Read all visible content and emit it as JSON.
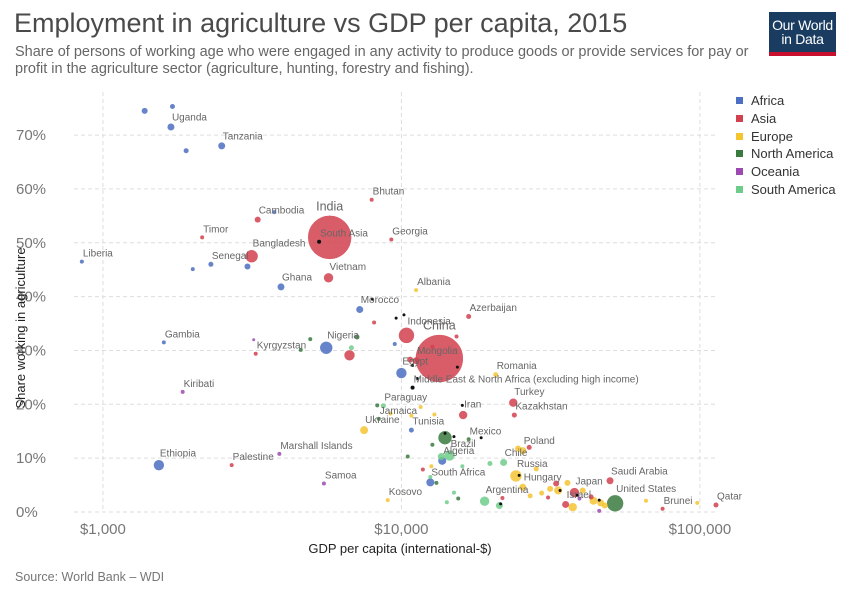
{
  "header": {
    "title": "Employment in agriculture vs GDP per capita, 2015",
    "subtitle": "Share of persons of working age who were engaged in any activity to produce goods or provide services for pay or profit in the agriculture sector (agriculture, hunting, forestry and fishing).",
    "logo_line1": "Our World",
    "logo_line2": "in Data",
    "logo_colors": {
      "background": "#1a3c61",
      "stripe": "#c8102e"
    }
  },
  "footer": {
    "source": "Source: World Bank – WDI"
  },
  "legend": [
    {
      "name": "Africa",
      "color": "#4c6fc1"
    },
    {
      "name": "Asia",
      "color": "#d1414e"
    },
    {
      "name": "Europe",
      "color": "#f4c431"
    },
    {
      "name": "North America",
      "color": "#3a7a3e"
    },
    {
      "name": "Oceania",
      "color": "#9b4bb0"
    },
    {
      "name": "South America",
      "color": "#6ecc8a"
    }
  ],
  "chart_data": {
    "type": "scatter",
    "title": "Employment in agriculture vs GDP per capita, 2015",
    "xlabel": "GDP per capita (international-$)",
    "ylabel": "Share working in agriculture",
    "x_scale": "log",
    "xlim": [
      800,
      115000
    ],
    "ylim": [
      0,
      75
    ],
    "x_ticks": [
      {
        "value": 1000,
        "label": "$1,000"
      },
      {
        "value": 10000,
        "label": "$10,000"
      },
      {
        "value": 100000,
        "label": "$100,000"
      }
    ],
    "y_ticks": [
      {
        "value": 0,
        "label": "0%"
      },
      {
        "value": 10,
        "label": "10%"
      },
      {
        "value": 20,
        "label": "20%"
      },
      {
        "value": 30,
        "label": "30%"
      },
      {
        "value": 40,
        "label": "40%"
      },
      {
        "value": 50,
        "label": "50%"
      },
      {
        "value": 60,
        "label": "60%"
      },
      {
        "value": 70,
        "label": "70%"
      }
    ],
    "grid": true,
    "legend_position": "right",
    "region_colors": {
      "Africa": "#4c6fc1",
      "Asia": "#d1414e",
      "Europe": "#f4c431",
      "North America": "#3a7a3e",
      "Oceania": "#9b4bb0",
      "South America": "#6ecc8a",
      "Other": "#111111"
    },
    "points": [
      {
        "label": "India",
        "region": "Asia",
        "x": 5750,
        "y": 51,
        "size": 22,
        "big": true
      },
      {
        "label": "China",
        "region": "Asia",
        "x": 13400,
        "y": 28.5,
        "size": 24,
        "big": true
      },
      {
        "label": "Uganda",
        "region": "Africa",
        "x": 1690,
        "y": 71.5,
        "size": 3.5
      },
      {
        "label": "Tanzania",
        "region": "Africa",
        "x": 2500,
        "y": 68,
        "size": 3.5
      },
      {
        "label": "Bhutan",
        "region": "Asia",
        "x": 7950,
        "y": 58,
        "size": 2
      },
      {
        "label": "Cambodia",
        "region": "Asia",
        "x": 3300,
        "y": 54.3,
        "size": 3
      },
      {
        "label": "Timor",
        "region": "Asia",
        "x": 2150,
        "y": 51,
        "size": 2
      },
      {
        "label": "South Asia",
        "region": "Other",
        "x": 5300,
        "y": 50.2,
        "size": 2
      },
      {
        "label": "Georgia",
        "region": "Asia",
        "x": 9250,
        "y": 50.6,
        "size": 2
      },
      {
        "label": "Bangladesh",
        "region": "Asia",
        "x": 3150,
        "y": 47.5,
        "size": 6.5
      },
      {
        "label": "Senegal",
        "region": "Africa",
        "x": 2300,
        "y": 46,
        "size": 2.5
      },
      {
        "label": "Liberia",
        "region": "Africa",
        "x": 850,
        "y": 46.5,
        "size": 2
      },
      {
        "label": "Vietnam",
        "region": "Asia",
        "x": 5700,
        "y": 43.5,
        "size": 5
      },
      {
        "label": "Ghana",
        "region": "Africa",
        "x": 3950,
        "y": 41.8,
        "size": 3.5
      },
      {
        "label": "Albania",
        "region": "Europe",
        "x": 11200,
        "y": 41.2,
        "size": 2
      },
      {
        "label": "Morocco",
        "region": "Africa",
        "x": 7250,
        "y": 37.6,
        "size": 3.5
      },
      {
        "label": "Azerbaijan",
        "region": "Asia",
        "x": 16800,
        "y": 36.3,
        "size": 2.5
      },
      {
        "label": "Indonesia",
        "region": "Asia",
        "x": 10400,
        "y": 32.8,
        "size": 8
      },
      {
        "label": "Gambia",
        "region": "Africa",
        "x": 1600,
        "y": 31.5,
        "size": 2
      },
      {
        "label": "Nigeria",
        "region": "Africa",
        "x": 5600,
        "y": 30.5,
        "size": 6.5
      },
      {
        "label": "Kyrgyzstan",
        "region": "Asia",
        "x": 3250,
        "y": 29.4,
        "size": 2
      },
      {
        "label": "Mongolia",
        "region": "Asia",
        "x": 11200,
        "y": 28.1,
        "size": 3.5
      },
      {
        "label": "Egypt",
        "region": "Africa",
        "x": 10000,
        "y": 25.8,
        "size": 5.5
      },
      {
        "label": "Middle East & North Africa (excluding high income)",
        "region": "Other",
        "x": 10900,
        "y": 23.1,
        "size": 2
      },
      {
        "label": "Romania",
        "region": "Europe",
        "x": 20700,
        "y": 25.5,
        "size": 2.5
      },
      {
        "label": "Turkey",
        "region": "Asia",
        "x": 23700,
        "y": 20.3,
        "size": 4.5
      },
      {
        "label": "Kiribati",
        "region": "Oceania",
        "x": 1850,
        "y": 22.3,
        "size": 2
      },
      {
        "label": "Paraguay",
        "region": "South America",
        "x": 8700,
        "y": 19.7,
        "size": 2.5
      },
      {
        "label": "Iran",
        "region": "Asia",
        "x": 16100,
        "y": 18,
        "size": 4.5
      },
      {
        "label": "Kazakhstan",
        "region": "Asia",
        "x": 23900,
        "y": 18,
        "size": 2.5
      },
      {
        "label": "Jamaica",
        "region": "North America",
        "x": 8400,
        "y": 17.3,
        "size": 2
      },
      {
        "label": "Ukraine",
        "region": "Europe",
        "x": 7500,
        "y": 15.2,
        "size": 4
      },
      {
        "label": "Tunisia",
        "region": "Africa",
        "x": 10800,
        "y": 15.2,
        "size": 2.5
      },
      {
        "label": "Mexico",
        "region": "North America",
        "x": 16800,
        "y": 13.5,
        "size": 2
      },
      {
        "label": "Marshall Islands",
        "region": "Oceania",
        "x": 3900,
        "y": 10.8,
        "size": 2
      },
      {
        "label": "Brazil",
        "region": "South America",
        "x": 14500,
        "y": 10.5,
        "size": 5.5
      },
      {
        "label": "Poland",
        "region": "Europe",
        "x": 25500,
        "y": 11.4,
        "size": 3.5
      },
      {
        "label": "Ethiopia",
        "region": "Africa",
        "x": 1540,
        "y": 8.7,
        "size": 5.5
      },
      {
        "label": "Palestine",
        "region": "Asia",
        "x": 2700,
        "y": 8.7,
        "size": 2
      },
      {
        "label": "Algeria",
        "region": "Africa",
        "x": 13700,
        "y": 9.5,
        "size": 4
      },
      {
        "label": "Chile",
        "region": "South America",
        "x": 22000,
        "y": 9.2,
        "size": 3.5
      },
      {
        "label": "Russia",
        "region": "Europe",
        "x": 24200,
        "y": 6.7,
        "size": 6
      },
      {
        "label": "Saudi Arabia",
        "region": "Asia",
        "x": 50000,
        "y": 5.8,
        "size": 3.5
      },
      {
        "label": "Samoa",
        "region": "Oceania",
        "x": 5500,
        "y": 5.3,
        "size": 2
      },
      {
        "label": "South Africa",
        "region": "Africa",
        "x": 12500,
        "y": 5.5,
        "size": 4
      },
      {
        "label": "Hungary",
        "region": "Europe",
        "x": 25500,
        "y": 4.6,
        "size": 3.5
      },
      {
        "label": "Japan",
        "region": "Asia",
        "x": 38000,
        "y": 3.6,
        "size": 5
      },
      {
        "label": "United States",
        "region": "North America",
        "x": 52000,
        "y": 1.6,
        "size": 8.5
      },
      {
        "label": "Kosovo",
        "region": "Europe",
        "x": 9000,
        "y": 2.2,
        "size": 2
      },
      {
        "label": "Argentina",
        "region": "South America",
        "x": 19000,
        "y": 2,
        "size": 5
      },
      {
        "label": "Israel",
        "region": "Asia",
        "x": 35500,
        "y": 1.4,
        "size": 3.5
      },
      {
        "label": "Brunei",
        "region": "Asia",
        "x": 75000,
        "y": 0.6,
        "size": 2
      },
      {
        "label": "Qatar",
        "region": "Asia",
        "x": 118000,
        "y": 1.3,
        "size": 2.5
      },
      {
        "label": "",
        "region": "Africa",
        "x": 1380,
        "y": 74.5,
        "size": 3
      },
      {
        "label": "",
        "region": "Africa",
        "x": 1710,
        "y": 75.3,
        "size": 2.5
      },
      {
        "label": "",
        "region": "Africa",
        "x": 1900,
        "y": 67.1,
        "size": 2.5
      },
      {
        "label": "",
        "region": "Africa",
        "x": 3050,
        "y": 45.6,
        "size": 3
      },
      {
        "label": "",
        "region": "Africa",
        "x": 3750,
        "y": 55.7,
        "size": 2
      },
      {
        "label": "",
        "region": "Africa",
        "x": 2000,
        "y": 45.1,
        "size": 2
      },
      {
        "label": "",
        "region": "Africa",
        "x": 9500,
        "y": 31.2,
        "size": 2
      },
      {
        "label": "",
        "region": "Asia",
        "x": 6700,
        "y": 29.1,
        "size": 5.5
      },
      {
        "label": "",
        "region": "Asia",
        "x": 10700,
        "y": 28.3,
        "size": 3
      },
      {
        "label": "",
        "region": "Asia",
        "x": 12700,
        "y": 30.7,
        "size": 2
      },
      {
        "label": "",
        "region": "Asia",
        "x": 15300,
        "y": 32.6,
        "size": 2
      },
      {
        "label": "",
        "region": "Asia",
        "x": 8100,
        "y": 35.2,
        "size": 2
      },
      {
        "label": "",
        "region": "Asia",
        "x": 26800,
        "y": 12,
        "size": 2.5
      },
      {
        "label": "",
        "region": "Asia",
        "x": 21800,
        "y": 2.6,
        "size": 2
      },
      {
        "label": "",
        "region": "Asia",
        "x": 31000,
        "y": 2.7,
        "size": 2
      },
      {
        "label": "",
        "region": "Asia",
        "x": 33000,
        "y": 5.3,
        "size": 3
      },
      {
        "label": "",
        "region": "Asia",
        "x": 43200,
        "y": 2.8,
        "size": 2.5
      },
      {
        "label": "",
        "region": "Asia",
        "x": 11800,
        "y": 7.9,
        "size": 2
      },
      {
        "label": "",
        "region": "North America",
        "x": 4600,
        "y": 30.1,
        "size": 2
      },
      {
        "label": "",
        "region": "North America",
        "x": 4950,
        "y": 32.1,
        "size": 2
      },
      {
        "label": "",
        "region": "North America",
        "x": 7100,
        "y": 32.5,
        "size": 2.5
      },
      {
        "label": "",
        "region": "North America",
        "x": 14000,
        "y": 13.8,
        "size": 7
      },
      {
        "label": "",
        "region": "North America",
        "x": 12700,
        "y": 12.5,
        "size": 2
      },
      {
        "label": "",
        "region": "North America",
        "x": 13100,
        "y": 5.4,
        "size": 2
      },
      {
        "label": "",
        "region": "North America",
        "x": 15500,
        "y": 2.5,
        "size": 2
      },
      {
        "label": "",
        "region": "North America",
        "x": 10500,
        "y": 10.3,
        "size": 2
      },
      {
        "label": "",
        "region": "North America",
        "x": 8300,
        "y": 19.8,
        "size": 2
      },
      {
        "label": "",
        "region": "South America",
        "x": 6800,
        "y": 30.5,
        "size": 2.5
      },
      {
        "label": "",
        "region": "South America",
        "x": 13600,
        "y": 10.3,
        "size": 3.5
      },
      {
        "label": "",
        "region": "South America",
        "x": 12500,
        "y": 6.5,
        "size": 2
      },
      {
        "label": "",
        "region": "South America",
        "x": 15000,
        "y": 3.6,
        "size": 2
      },
      {
        "label": "",
        "region": "South America",
        "x": 19800,
        "y": 9,
        "size": 2.5
      },
      {
        "label": "",
        "region": "South America",
        "x": 16000,
        "y": 8.5,
        "size": 2
      },
      {
        "label": "",
        "region": "South America",
        "x": 21300,
        "y": 1.2,
        "size": 3.5
      },
      {
        "label": "",
        "region": "South America",
        "x": 14200,
        "y": 1.8,
        "size": 2
      },
      {
        "label": "",
        "region": "Oceania",
        "x": 3200,
        "y": 32,
        "size": 1.5
      },
      {
        "label": "",
        "region": "Oceania",
        "x": 46000,
        "y": 0.2,
        "size": 2
      },
      {
        "label": "",
        "region": "Oceania",
        "x": 39500,
        "y": 2.5,
        "size": 2
      },
      {
        "label": "",
        "region": "Europe",
        "x": 9200,
        "y": 18.3,
        "size": 2
      },
      {
        "label": "",
        "region": "Europe",
        "x": 10800,
        "y": 17.9,
        "size": 2
      },
      {
        "label": "",
        "region": "Europe",
        "x": 12900,
        "y": 18.1,
        "size": 2
      },
      {
        "label": "",
        "region": "Europe",
        "x": 12600,
        "y": 8.5,
        "size": 2
      },
      {
        "label": "",
        "region": "Europe",
        "x": 24600,
        "y": 11.8,
        "size": 3
      },
      {
        "label": "",
        "region": "Europe",
        "x": 28300,
        "y": 8,
        "size": 2.5
      },
      {
        "label": "",
        "region": "Europe",
        "x": 29500,
        "y": 3.5,
        "size": 2.5
      },
      {
        "label": "",
        "region": "Europe",
        "x": 31500,
        "y": 4.3,
        "size": 3
      },
      {
        "label": "",
        "region": "Europe",
        "x": 33500,
        "y": 4,
        "size": 4
      },
      {
        "label": "",
        "region": "Europe",
        "x": 36000,
        "y": 5.4,
        "size": 3
      },
      {
        "label": "",
        "region": "Europe",
        "x": 37500,
        "y": 0.9,
        "size": 4.5
      },
      {
        "label": "",
        "region": "Europe",
        "x": 40500,
        "y": 4,
        "size": 3
      },
      {
        "label": "",
        "region": "Europe",
        "x": 44000,
        "y": 2.1,
        "size": 4
      },
      {
        "label": "",
        "region": "Europe",
        "x": 46500,
        "y": 1.7,
        "size": 3.5
      },
      {
        "label": "",
        "region": "Europe",
        "x": 48000,
        "y": 1.2,
        "size": 3
      },
      {
        "label": "",
        "region": "Europe",
        "x": 66000,
        "y": 2.1,
        "size": 2
      },
      {
        "label": "",
        "region": "Europe",
        "x": 98000,
        "y": 1.7,
        "size": 2
      },
      {
        "label": "",
        "region": "Europe",
        "x": 27000,
        "y": 3,
        "size": 2.5
      },
      {
        "label": "",
        "region": "Europe",
        "x": 11600,
        "y": 19.5,
        "size": 2
      },
      {
        "label": "",
        "region": "Other",
        "x": 8000,
        "y": 39.5,
        "size": 1.5
      },
      {
        "label": "",
        "region": "Other",
        "x": 9600,
        "y": 36,
        "size": 1.5
      },
      {
        "label": "",
        "region": "Other",
        "x": 10200,
        "y": 36.6,
        "size": 1.5
      },
      {
        "label": "",
        "region": "Other",
        "x": 10900,
        "y": 27.2,
        "size": 1.5
      },
      {
        "label": "",
        "region": "Other",
        "x": 11300,
        "y": 24.8,
        "size": 1.5
      },
      {
        "label": "",
        "region": "Other",
        "x": 14000,
        "y": 14.6,
        "size": 1.5
      },
      {
        "label": "",
        "region": "Other",
        "x": 15000,
        "y": 14,
        "size": 1.5
      },
      {
        "label": "",
        "region": "Other",
        "x": 18500,
        "y": 13.8,
        "size": 1.5
      },
      {
        "label": "",
        "region": "Other",
        "x": 16000,
        "y": 19.8,
        "size": 1.5
      },
      {
        "label": "",
        "region": "Other",
        "x": 15400,
        "y": 26.9,
        "size": 1.5
      },
      {
        "label": "",
        "region": "Other",
        "x": 24800,
        "y": 6.8,
        "size": 1.5
      },
      {
        "label": "",
        "region": "Other",
        "x": 34000,
        "y": 4,
        "size": 1.5
      },
      {
        "label": "",
        "region": "Other",
        "x": 38800,
        "y": 3.1,
        "size": 1.5
      },
      {
        "label": "",
        "region": "Other",
        "x": 46000,
        "y": 2.2,
        "size": 1.5
      },
      {
        "label": "",
        "region": "Other",
        "x": 21500,
        "y": 1.5,
        "size": 1.5
      }
    ]
  }
}
